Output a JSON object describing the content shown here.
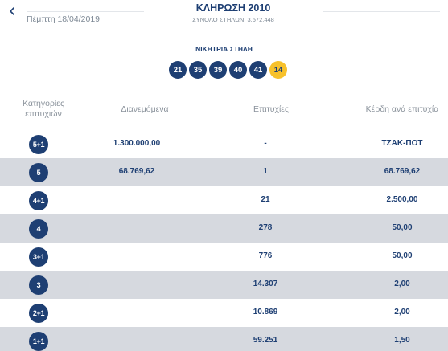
{
  "header": {
    "back_icon": "chevron-left-icon",
    "date": "Πέμπτη 18/04/2019",
    "title": "ΚΛΗΡΩΣΗ 2010",
    "subtitle": "ΣΥΝΟΛΟ ΣΤΗΛΩΝ: 3.572.448"
  },
  "winning": {
    "title": "ΝΙΚΗΤΡΙΑ ΣΤΗΛΗ",
    "numbers": [
      "21",
      "35",
      "39",
      "40",
      "41"
    ],
    "joker": "14",
    "colors": {
      "number_ball": "#1e3f73",
      "joker_ball": "#f7c12b"
    }
  },
  "table": {
    "columns": {
      "category_line1": "Κατηγορίες",
      "category_line2": "επιτυχιών",
      "distributed": "Διανεμόμενα",
      "winners": "Επιτυχίες",
      "prize": "Κέρδη ανά επιτυχία"
    },
    "rows": [
      {
        "category": "5+1",
        "distributed": "1.300.000,00",
        "winners": "-",
        "prize": "ΤΖΑΚ-ΠΟΤ"
      },
      {
        "category": "5",
        "distributed": "68.769,62",
        "winners": "1",
        "prize": "68.769,62"
      },
      {
        "category": "4+1",
        "distributed": "",
        "winners": "21",
        "prize": "2.500,00"
      },
      {
        "category": "4",
        "distributed": "",
        "winners": "278",
        "prize": "50,00"
      },
      {
        "category": "3+1",
        "distributed": "",
        "winners": "776",
        "prize": "50,00"
      },
      {
        "category": "3",
        "distributed": "",
        "winners": "14.307",
        "prize": "2,00"
      },
      {
        "category": "2+1",
        "distributed": "",
        "winners": "10.869",
        "prize": "2,00"
      },
      {
        "category": "1+1",
        "distributed": "",
        "winners": "59.251",
        "prize": "1,50"
      }
    ]
  }
}
